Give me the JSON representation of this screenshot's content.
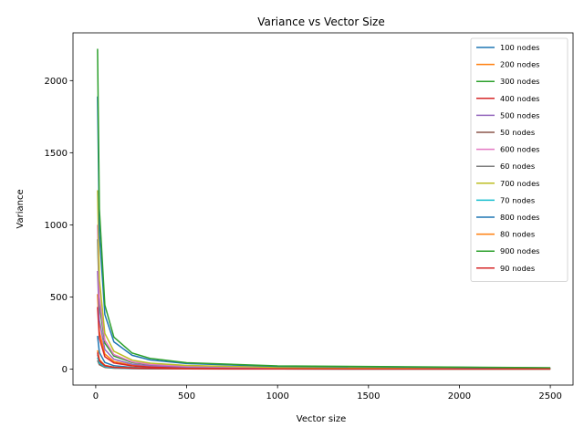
{
  "chart_data": {
    "type": "line",
    "title": "Variance vs Vector Size",
    "xlabel": "Vector size",
    "ylabel": "Variance",
    "xlim": [
      -125,
      2625
    ],
    "ylim": [
      -111,
      2331
    ],
    "xticks": [
      0,
      500,
      1000,
      1500,
      2000,
      2500
    ],
    "yticks": [
      0,
      500,
      1000,
      1500,
      2000
    ],
    "grid": false,
    "legend_position": "top-right",
    "x": [
      10,
      20,
      50,
      100,
      200,
      300,
      500,
      1000,
      2500
    ],
    "series": [
      {
        "name": "100 nodes",
        "color": "#1f77b4",
        "values": [
          230,
          115,
          46,
          23,
          12,
          8,
          5,
          2.5,
          1
        ]
      },
      {
        "name": "200 nodes",
        "color": "#ff7f0e",
        "values": [
          520,
          260,
          104,
          52,
          26,
          17,
          10,
          5,
          2
        ]
      },
      {
        "name": "300 nodes",
        "color": "#2ca02c",
        "values": [
          900,
          450,
          180,
          90,
          45,
          30,
          18,
          9,
          4
        ]
      },
      {
        "name": "400 nodes",
        "color": "#d62728",
        "values": [
          430,
          215,
          86,
          43,
          22,
          14,
          9,
          4,
          2
        ]
      },
      {
        "name": "500 nodes",
        "color": "#9467bd",
        "values": [
          680,
          340,
          136,
          68,
          34,
          23,
          14,
          7,
          3
        ]
      },
      {
        "name": "50 nodes",
        "color": "#8c564b",
        "values": [
          60,
          30,
          12,
          6,
          3,
          2,
          1,
          0.6,
          0.3
        ]
      },
      {
        "name": "600 nodes",
        "color": "#e377c2",
        "values": [
          1000,
          500,
          200,
          100,
          50,
          33,
          20,
          10,
          4
        ]
      },
      {
        "name": "60 nodes",
        "color": "#7f7f7f",
        "values": [
          100,
          50,
          20,
          10,
          5,
          3,
          2,
          1,
          0.4
        ]
      },
      {
        "name": "700 nodes",
        "color": "#bcbd22",
        "values": [
          1240,
          620,
          248,
          124,
          62,
          41,
          25,
          12,
          5
        ]
      },
      {
        "name": "70 nodes",
        "color": "#17becf",
        "values": [
          80,
          40,
          16,
          8,
          4,
          3,
          2,
          0.8,
          0.3
        ]
      },
      {
        "name": "800 nodes",
        "color": "#1f77b4",
        "values": [
          1890,
          945,
          378,
          189,
          95,
          63,
          38,
          19,
          8
        ]
      },
      {
        "name": "80 nodes",
        "color": "#ff7f0e",
        "values": [
          130,
          65,
          26,
          13,
          7,
          4,
          3,
          1.3,
          0.5
        ]
      },
      {
        "name": "900 nodes",
        "color": "#2ca02c",
        "values": [
          2220,
          1110,
          444,
          222,
          111,
          74,
          44,
          22,
          9
        ]
      },
      {
        "name": "90 nodes",
        "color": "#d62728",
        "values": [
          115,
          58,
          23,
          12,
          6,
          4,
          2,
          1.2,
          0.5
        ]
      }
    ]
  }
}
